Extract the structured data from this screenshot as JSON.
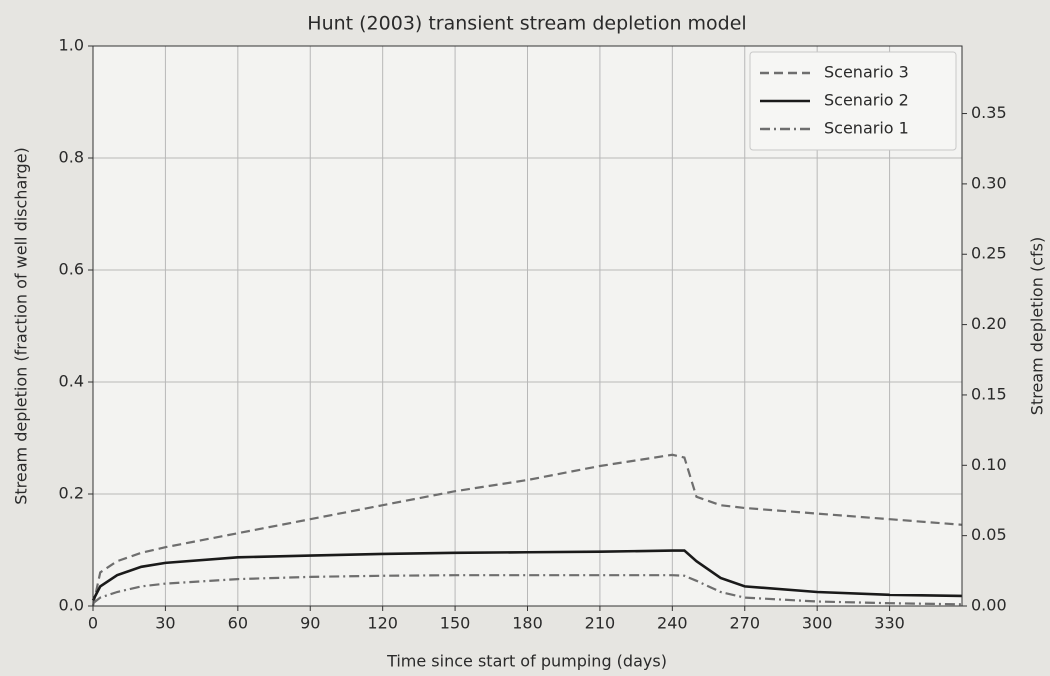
{
  "chart_data": {
    "type": "line",
    "title": "Hunt (2003) transient stream depletion model",
    "xlabel": "Time since start of pumping (days)",
    "ylabel": "Stream depletion (fraction of well discharge)",
    "y2label": "Stream depletion (cfs)",
    "x": [
      0,
      3,
      10,
      20,
      30,
      60,
      90,
      120,
      150,
      180,
      210,
      240,
      245,
      250,
      260,
      270,
      300,
      330,
      360
    ],
    "series": [
      {
        "name": "Scenario 3",
        "color": "#6e6e6e",
        "linestyle": "dashed",
        "values": [
          0,
          0.06,
          0.08,
          0.095,
          0.105,
          0.13,
          0.155,
          0.18,
          0.205,
          0.225,
          0.25,
          0.27,
          0.265,
          0.195,
          0.18,
          0.175,
          0.165,
          0.155,
          0.145
        ]
      },
      {
        "name": "Scenario 2",
        "color": "#1a1a1a",
        "linestyle": "solid",
        "values": [
          0.01,
          0.035,
          0.055,
          0.07,
          0.077,
          0.087,
          0.09,
          0.093,
          0.095,
          0.096,
          0.097,
          0.099,
          0.099,
          0.08,
          0.05,
          0.035,
          0.025,
          0.02,
          0.018
        ]
      },
      {
        "name": "Scenario 1",
        "color": "#6e6e6e",
        "linestyle": "dashdot",
        "values": [
          0.005,
          0.015,
          0.025,
          0.035,
          0.04,
          0.048,
          0.052,
          0.054,
          0.055,
          0.055,
          0.055,
          0.055,
          0.054,
          0.045,
          0.025,
          0.015,
          0.008,
          0.005,
          0.003
        ]
      }
    ],
    "xlim": [
      0,
      360
    ],
    "xticks": [
      0,
      30,
      60,
      90,
      120,
      150,
      180,
      210,
      240,
      270,
      300,
      330
    ],
    "ylim": [
      0,
      1
    ],
    "yticks": [
      {
        "value": 0,
        "label": "0.0"
      },
      0.2,
      0.4,
      0.6,
      0.8,
      {
        "value": 1,
        "label": "1.0"
      }
    ],
    "y2lim": [
      0,
      0.398
    ],
    "y2ticks": [
      {
        "value": 0,
        "label": "0.00"
      },
      0.05,
      {
        "value": 0.1,
        "label": "0.10"
      },
      0.15,
      {
        "value": 0.2,
        "label": "0.20"
      },
      0.25,
      {
        "value": 0.3,
        "label": "0.30"
      },
      0.35
    ],
    "grid": true,
    "legend": "upper right"
  }
}
